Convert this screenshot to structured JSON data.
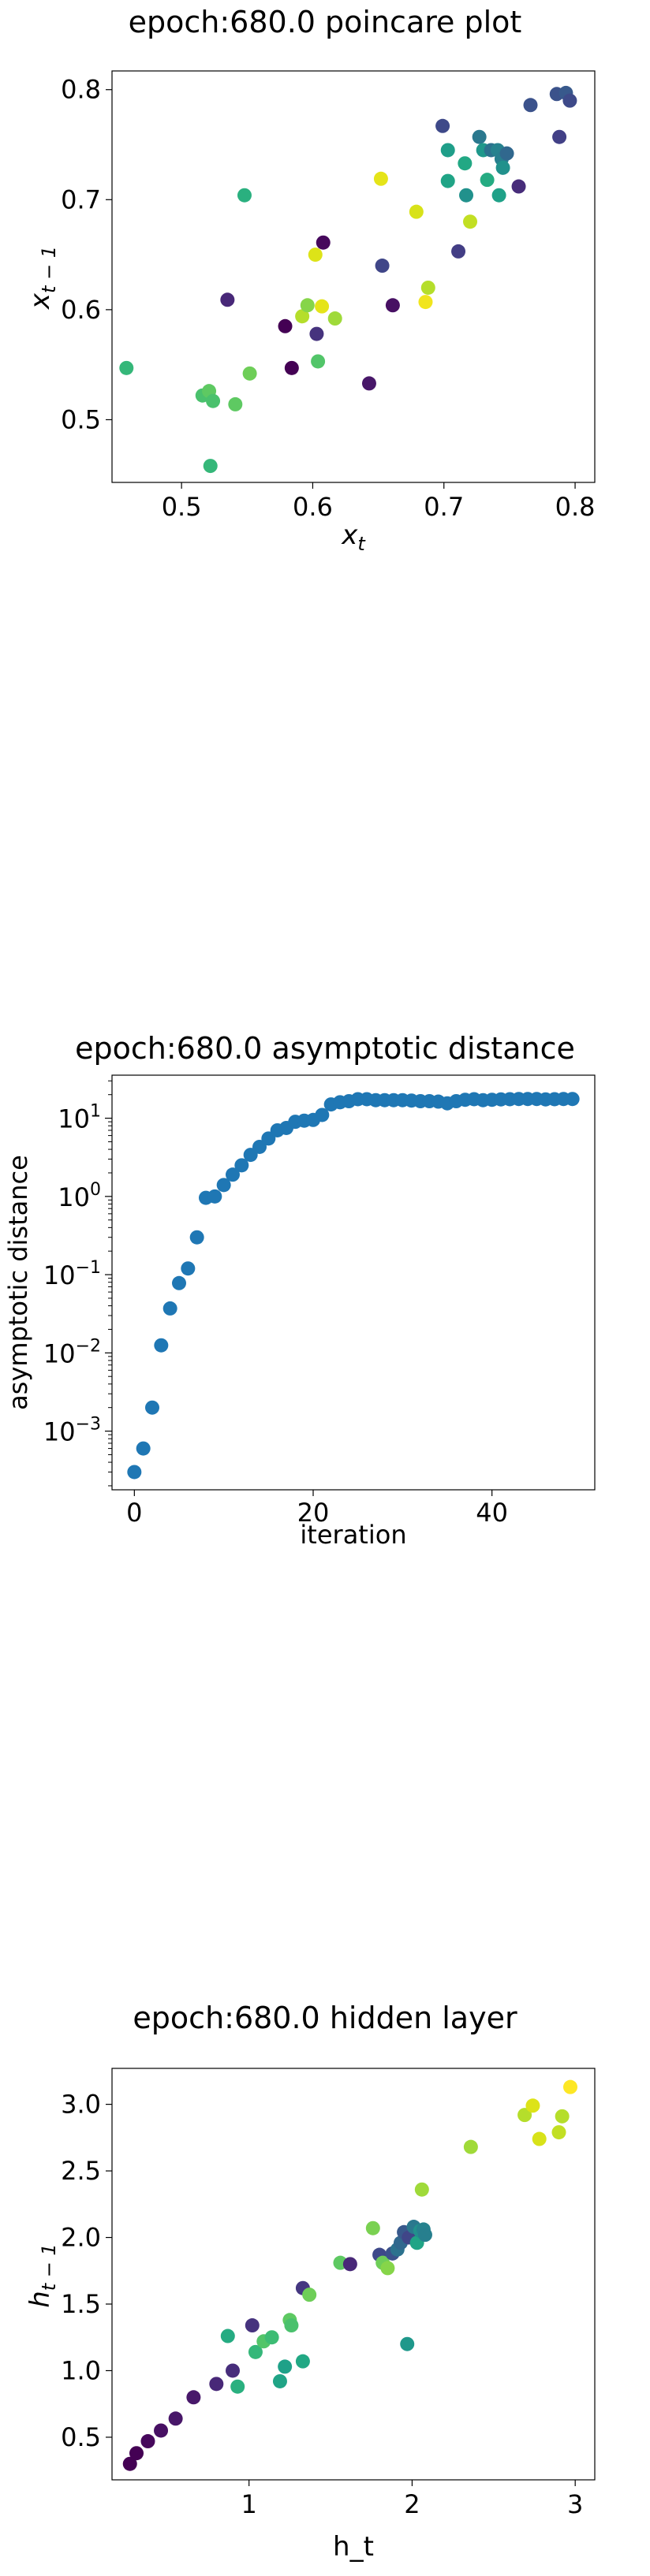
{
  "chart_data": [
    {
      "type": "scatter",
      "title": "epoch:680.0 poincare plot",
      "xlabel_base": "x",
      "xlabel_sub": "t",
      "ylabel_base": "x",
      "ylabel_sub": "t − 1",
      "xlim": [
        0.447,
        0.815
      ],
      "ylim": [
        0.443,
        0.817
      ],
      "xticks": [
        0.5,
        0.6,
        0.7,
        0.8
      ],
      "yticks": [
        0.5,
        0.6,
        0.7,
        0.8
      ],
      "xtick_labels": [
        "0.5",
        "0.6",
        "0.7",
        "0.8"
      ],
      "ytick_labels": [
        "0.5",
        "0.6",
        "0.7",
        "0.8"
      ],
      "grid": false,
      "points": [
        {
          "x": 0.458,
          "y": 0.547,
          "color": "#35b779"
        },
        {
          "x": 0.516,
          "y": 0.522,
          "color": "#4ac16d"
        },
        {
          "x": 0.521,
          "y": 0.526,
          "color": "#5ec962"
        },
        {
          "x": 0.524,
          "y": 0.517,
          "color": "#4ac16d"
        },
        {
          "x": 0.522,
          "y": 0.458,
          "color": "#35b779"
        },
        {
          "x": 0.535,
          "y": 0.609,
          "color": "#482878"
        },
        {
          "x": 0.541,
          "y": 0.514,
          "color": "#5ec962"
        },
        {
          "x": 0.548,
          "y": 0.704,
          "color": "#2ab07f"
        },
        {
          "x": 0.552,
          "y": 0.542,
          "color": "#6ece58"
        },
        {
          "x": 0.579,
          "y": 0.585,
          "color": "#440154"
        },
        {
          "x": 0.584,
          "y": 0.547,
          "color": "#440154"
        },
        {
          "x": 0.592,
          "y": 0.594,
          "color": "#b5de2b"
        },
        {
          "x": 0.596,
          "y": 0.604,
          "color": "#86d549"
        },
        {
          "x": 0.602,
          "y": 0.65,
          "color": "#dde318"
        },
        {
          "x": 0.603,
          "y": 0.578,
          "color": "#46337e"
        },
        {
          "x": 0.604,
          "y": 0.553,
          "color": "#52c569"
        },
        {
          "x": 0.607,
          "y": 0.603,
          "color": "#e5e419"
        },
        {
          "x": 0.608,
          "y": 0.661,
          "color": "#46085c"
        },
        {
          "x": 0.617,
          "y": 0.592,
          "color": "#9fda3a"
        },
        {
          "x": 0.643,
          "y": 0.533,
          "color": "#481769"
        },
        {
          "x": 0.652,
          "y": 0.719,
          "color": "#e5e419"
        },
        {
          "x": 0.653,
          "y": 0.64,
          "color": "#404688"
        },
        {
          "x": 0.661,
          "y": 0.604,
          "color": "#471063"
        },
        {
          "x": 0.679,
          "y": 0.689,
          "color": "#d8e219"
        },
        {
          "x": 0.686,
          "y": 0.607,
          "color": "#f1e51d"
        },
        {
          "x": 0.688,
          "y": 0.62,
          "color": "#b5de2b"
        },
        {
          "x": 0.699,
          "y": 0.767,
          "color": "#3e4989"
        },
        {
          "x": 0.703,
          "y": 0.745,
          "color": "#1f9e89"
        },
        {
          "x": 0.703,
          "y": 0.717,
          "color": "#20a486"
        },
        {
          "x": 0.711,
          "y": 0.653,
          "color": "#433e85"
        },
        {
          "x": 0.716,
          "y": 0.733,
          "color": "#22a884"
        },
        {
          "x": 0.717,
          "y": 0.704,
          "color": "#21918c"
        },
        {
          "x": 0.72,
          "y": 0.68,
          "color": "#c2df23"
        },
        {
          "x": 0.727,
          "y": 0.757,
          "color": "#2a788e"
        },
        {
          "x": 0.73,
          "y": 0.745,
          "color": "#1f988b"
        },
        {
          "x": 0.733,
          "y": 0.718,
          "color": "#25ab82"
        },
        {
          "x": 0.736,
          "y": 0.745,
          "color": "#2c728e"
        },
        {
          "x": 0.741,
          "y": 0.745,
          "color": "#26828e"
        },
        {
          "x": 0.742,
          "y": 0.704,
          "color": "#1fa188"
        },
        {
          "x": 0.744,
          "y": 0.737,
          "color": "#277f8e"
        },
        {
          "x": 0.745,
          "y": 0.729,
          "color": "#21918c"
        },
        {
          "x": 0.748,
          "y": 0.742,
          "color": "#31688e"
        },
        {
          "x": 0.757,
          "y": 0.712,
          "color": "#472c7a"
        },
        {
          "x": 0.766,
          "y": 0.786,
          "color": "#3b528b"
        },
        {
          "x": 0.786,
          "y": 0.796,
          "color": "#3b528b"
        },
        {
          "x": 0.788,
          "y": 0.757,
          "color": "#424086"
        },
        {
          "x": 0.793,
          "y": 0.797,
          "color": "#38598c"
        },
        {
          "x": 0.796,
          "y": 0.79,
          "color": "#3e4a89"
        }
      ]
    },
    {
      "type": "scatter",
      "title": "epoch:680.0 asymptotic distance",
      "xlabel": "iteration",
      "ylabel": "asymptotic distance",
      "yscale": "log",
      "xlim": [
        -2.5,
        51.5
      ],
      "ylim_log10": [
        -3.75,
        1.55
      ],
      "xticks": [
        0,
        20,
        40
      ],
      "xtick_labels": [
        "0",
        "20",
        "40"
      ],
      "yticks_log10": [
        -3,
        -2,
        -1,
        0,
        1
      ],
      "ytick_labels": [
        "10",
        "10",
        "10",
        "10",
        "10"
      ],
      "ytick_exponents": [
        "−3",
        "−2",
        "−1",
        "0",
        "1"
      ],
      "grid": false,
      "marker_color": "#1f77b4",
      "points": [
        {
          "x": 0,
          "y": 0.0003
        },
        {
          "x": 1,
          "y": 0.0006
        },
        {
          "x": 2,
          "y": 0.002
        },
        {
          "x": 3,
          "y": 0.0125
        },
        {
          "x": 4,
          "y": 0.037
        },
        {
          "x": 5,
          "y": 0.078
        },
        {
          "x": 6,
          "y": 0.12
        },
        {
          "x": 7,
          "y": 0.3
        },
        {
          "x": 8,
          "y": 0.96
        },
        {
          "x": 9,
          "y": 1.0
        },
        {
          "x": 10,
          "y": 1.4
        },
        {
          "x": 11,
          "y": 1.9
        },
        {
          "x": 12,
          "y": 2.5
        },
        {
          "x": 13,
          "y": 3.4
        },
        {
          "x": 14,
          "y": 4.3
        },
        {
          "x": 15,
          "y": 5.5
        },
        {
          "x": 16,
          "y": 7.0
        },
        {
          "x": 17,
          "y": 7.5
        },
        {
          "x": 18,
          "y": 9.0
        },
        {
          "x": 19,
          "y": 9.3
        },
        {
          "x": 20,
          "y": 9.5
        },
        {
          "x": 21,
          "y": 11.0
        },
        {
          "x": 22,
          "y": 15.0
        },
        {
          "x": 23,
          "y": 16.0
        },
        {
          "x": 24,
          "y": 16.5
        },
        {
          "x": 25,
          "y": 17.5
        },
        {
          "x": 26,
          "y": 17.5
        },
        {
          "x": 27,
          "y": 17.0
        },
        {
          "x": 28,
          "y": 17.0
        },
        {
          "x": 29,
          "y": 17.0
        },
        {
          "x": 30,
          "y": 17.0
        },
        {
          "x": 31,
          "y": 16.8
        },
        {
          "x": 32,
          "y": 16.5
        },
        {
          "x": 33,
          "y": 16.5
        },
        {
          "x": 34,
          "y": 16.3
        },
        {
          "x": 35,
          "y": 15.5
        },
        {
          "x": 36,
          "y": 16.5
        },
        {
          "x": 37,
          "y": 17.2
        },
        {
          "x": 38,
          "y": 17.5
        },
        {
          "x": 39,
          "y": 17.0
        },
        {
          "x": 40,
          "y": 17.2
        },
        {
          "x": 41,
          "y": 17.4
        },
        {
          "x": 42,
          "y": 17.5
        },
        {
          "x": 43,
          "y": 17.6
        },
        {
          "x": 44,
          "y": 17.6
        },
        {
          "x": 45,
          "y": 17.6
        },
        {
          "x": 46,
          "y": 17.4
        },
        {
          "x": 47,
          "y": 17.5
        },
        {
          "x": 48,
          "y": 17.6
        },
        {
          "x": 49,
          "y": 17.6
        }
      ]
    },
    {
      "type": "scatter",
      "title": "epoch:680.0 hidden layer",
      "xlabel": "h_t",
      "ylabel_base": "h",
      "ylabel_sub": "t − 1",
      "xlim": [
        0.16,
        3.12
      ],
      "ylim": [
        0.18,
        3.27
      ],
      "xticks": [
        1,
        2,
        3
      ],
      "xtick_labels": [
        "1",
        "2",
        "3"
      ],
      "yticks": [
        0.5,
        1.0,
        1.5,
        2.0,
        2.5,
        3.0
      ],
      "ytick_labels": [
        "0.5",
        "1.0",
        "1.5",
        "2.0",
        "2.5",
        "3.0"
      ],
      "grid": false,
      "points": [
        {
          "x": 0.27,
          "y": 0.3,
          "color": "#440154"
        },
        {
          "x": 0.31,
          "y": 0.38,
          "color": "#440154"
        },
        {
          "x": 0.38,
          "y": 0.47,
          "color": "#46085c"
        },
        {
          "x": 0.46,
          "y": 0.55,
          "color": "#471063"
        },
        {
          "x": 0.55,
          "y": 0.64,
          "color": "#481769"
        },
        {
          "x": 0.66,
          "y": 0.8,
          "color": "#48186a"
        },
        {
          "x": 0.8,
          "y": 0.9,
          "color": "#482878"
        },
        {
          "x": 0.9,
          "y": 1.0,
          "color": "#472d7b"
        },
        {
          "x": 0.87,
          "y": 1.26,
          "color": "#25ab82"
        },
        {
          "x": 0.93,
          "y": 0.88,
          "color": "#2ab07f"
        },
        {
          "x": 1.02,
          "y": 1.34,
          "color": "#46337e"
        },
        {
          "x": 1.04,
          "y": 1.14,
          "color": "#35b779"
        },
        {
          "x": 1.09,
          "y": 1.22,
          "color": "#52c569"
        },
        {
          "x": 1.14,
          "y": 1.25,
          "color": "#3dbc74"
        },
        {
          "x": 1.19,
          "y": 0.92,
          "color": "#20a486"
        },
        {
          "x": 1.22,
          "y": 1.03,
          "color": "#1fa188"
        },
        {
          "x": 1.25,
          "y": 1.38,
          "color": "#5ec962"
        },
        {
          "x": 1.26,
          "y": 1.34,
          "color": "#4ac16d"
        },
        {
          "x": 1.33,
          "y": 1.07,
          "color": "#22a884"
        },
        {
          "x": 1.33,
          "y": 1.62,
          "color": "#453781"
        },
        {
          "x": 1.37,
          "y": 1.57,
          "color": "#6ece58"
        },
        {
          "x": 1.56,
          "y": 1.81,
          "color": "#5ec962"
        },
        {
          "x": 1.62,
          "y": 1.8,
          "color": "#482878"
        },
        {
          "x": 1.76,
          "y": 2.07,
          "color": "#7ad151"
        },
        {
          "x": 1.8,
          "y": 1.87,
          "color": "#3e4989"
        },
        {
          "x": 1.82,
          "y": 1.81,
          "color": "#6ece58"
        },
        {
          "x": 1.85,
          "y": 1.77,
          "color": "#86d549"
        },
        {
          "x": 1.88,
          "y": 1.88,
          "color": "#3b528b"
        },
        {
          "x": 1.91,
          "y": 1.91,
          "color": "#2c728e"
        },
        {
          "x": 1.93,
          "y": 1.96,
          "color": "#31688e"
        },
        {
          "x": 1.95,
          "y": 2.04,
          "color": "#38598c"
        },
        {
          "x": 1.97,
          "y": 1.2,
          "color": "#1f988b"
        },
        {
          "x": 1.98,
          "y": 2.0,
          "color": "#404688"
        },
        {
          "x": 2.01,
          "y": 2.08,
          "color": "#2a788e"
        },
        {
          "x": 2.03,
          "y": 1.96,
          "color": "#20a486"
        },
        {
          "x": 2.05,
          "y": 2.05,
          "color": "#21918c"
        },
        {
          "x": 2.07,
          "y": 2.06,
          "color": "#26828e"
        },
        {
          "x": 2.08,
          "y": 2.02,
          "color": "#277f8e"
        },
        {
          "x": 2.06,
          "y": 2.36,
          "color": "#9fda3a"
        },
        {
          "x": 2.36,
          "y": 2.68,
          "color": "#a0da39"
        },
        {
          "x": 2.69,
          "y": 2.92,
          "color": "#b5de2b"
        },
        {
          "x": 2.74,
          "y": 2.99,
          "color": "#dde318"
        },
        {
          "x": 2.78,
          "y": 2.74,
          "color": "#d8e219"
        },
        {
          "x": 2.9,
          "y": 2.79,
          "color": "#c2df23"
        },
        {
          "x": 2.92,
          "y": 2.91,
          "color": "#b5de2b"
        },
        {
          "x": 2.97,
          "y": 3.13,
          "color": "#fde725"
        }
      ]
    }
  ]
}
